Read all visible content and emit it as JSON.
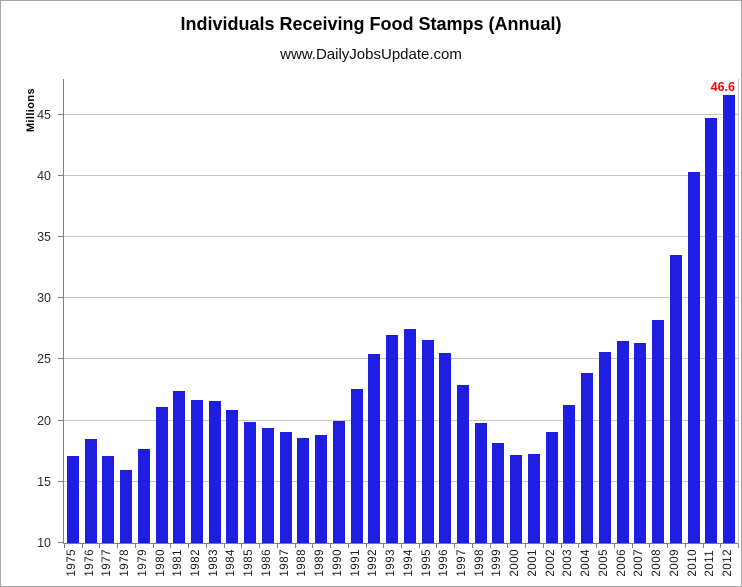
{
  "header": {
    "title": "Individuals Receiving Food Stamps (Annual)",
    "subtitle": "www.DailyJobsUpdate.com"
  },
  "annotation": {
    "last_value_label": "46.6"
  },
  "colors": {
    "bar": "#1e1ee0",
    "annotation": "#ff0000",
    "gridline": "#c6c6c6",
    "axis": "#7f7f7f",
    "frame_border": "#a6a6a6"
  },
  "chart_data": {
    "type": "bar",
    "title": "Individuals Receiving Food Stamps (Annual)",
    "subtitle": "www.DailyJobsUpdate.com",
    "xlabel": "",
    "ylabel": "Millions",
    "ylim": [
      10,
      47.9
    ],
    "yticks": [
      10,
      15,
      20,
      25,
      30,
      35,
      40,
      45
    ],
    "grid": true,
    "legend": false,
    "categories": [
      "1975",
      "1976",
      "1977",
      "1978",
      "1979",
      "1980",
      "1981",
      "1982",
      "1983",
      "1984",
      "1985",
      "1986",
      "1987",
      "1988",
      "1989",
      "1990",
      "1991",
      "1992",
      "1993",
      "1994",
      "1995",
      "1996",
      "1997",
      "1998",
      "1999",
      "2000",
      "2001",
      "2002",
      "2003",
      "2004",
      "2005",
      "2006",
      "2007",
      "2008",
      "2009",
      "2010",
      "2011",
      "2012"
    ],
    "values": [
      17.1,
      18.5,
      17.1,
      16.0,
      17.7,
      21.1,
      22.4,
      21.7,
      21.6,
      20.9,
      19.9,
      19.4,
      19.1,
      18.6,
      18.8,
      20.0,
      22.6,
      25.4,
      27.0,
      27.5,
      26.6,
      25.5,
      22.9,
      19.8,
      18.2,
      17.2,
      17.3,
      19.1,
      21.3,
      23.9,
      25.6,
      26.5,
      26.3,
      28.2,
      33.5,
      40.3,
      44.7,
      46.6
    ],
    "annotations": [
      {
        "category": "2012",
        "text": "46.6",
        "color": "#ff0000",
        "position": "above-last-bar"
      }
    ]
  }
}
